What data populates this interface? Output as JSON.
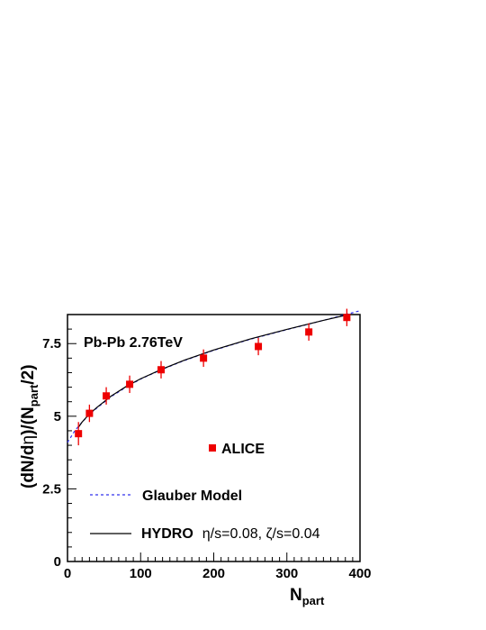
{
  "chart_data": {
    "type": "scatter",
    "annotation": "Pb-Pb  2.76TeV",
    "xlabel": {
      "main": "N",
      "sub": "part"
    },
    "ylabel": {
      "p1": "(dN/d",
      "eta1": "η",
      "p2": ")/(N",
      "sub": "part",
      "p3": "/2)"
    },
    "xlim": [
      0,
      400
    ],
    "ylim": [
      0,
      8.5
    ],
    "xticks": [
      0,
      100,
      200,
      300,
      400
    ],
    "yticks": [
      0,
      2.5,
      5,
      7.5
    ],
    "ytick_labels": [
      "0",
      "2.5",
      "5",
      "7.5"
    ],
    "grid": false,
    "legend": {
      "alice": "ALICE",
      "glauber": "Glauber Model",
      "hydro_label": "HYDRO",
      "hydro_params": "η/s=0.08, ζ/s=0.04"
    },
    "series": [
      {
        "name": "ALICE",
        "kind": "points",
        "color": "#ee0000",
        "x": [
          15,
          30,
          53,
          85,
          128,
          186,
          261,
          330,
          382
        ],
        "y": [
          4.4,
          5.1,
          5.7,
          6.1,
          6.6,
          7.0,
          7.4,
          7.9,
          8.4
        ],
        "err": [
          0.4,
          0.3,
          0.3,
          0.3,
          0.3,
          0.3,
          0.3,
          0.3,
          0.3
        ]
      },
      {
        "name": "Glauber Model",
        "kind": "line",
        "style": "dashed",
        "color": "#3030ee",
        "x": [
          0,
          10,
          20,
          30,
          40,
          60,
          80,
          100,
          130,
          160,
          200,
          250,
          300,
          350,
          400
        ],
        "y": [
          4.1,
          4.5,
          4.8,
          5.06,
          5.28,
          5.68,
          6.0,
          6.28,
          6.62,
          6.92,
          7.27,
          7.65,
          7.98,
          8.3,
          8.63
        ]
      },
      {
        "name": "HYDRO η/s=0.08, ζ/s=0.04",
        "kind": "line",
        "style": "solid",
        "color": "#000000",
        "x": [
          15,
          20,
          30,
          40,
          60,
          80,
          100,
          130,
          160,
          200,
          250,
          300,
          350,
          383
        ],
        "y": [
          4.62,
          4.8,
          5.08,
          5.3,
          5.7,
          6.02,
          6.29,
          6.63,
          6.93,
          7.28,
          7.66,
          7.99,
          8.3,
          8.49
        ]
      }
    ]
  }
}
